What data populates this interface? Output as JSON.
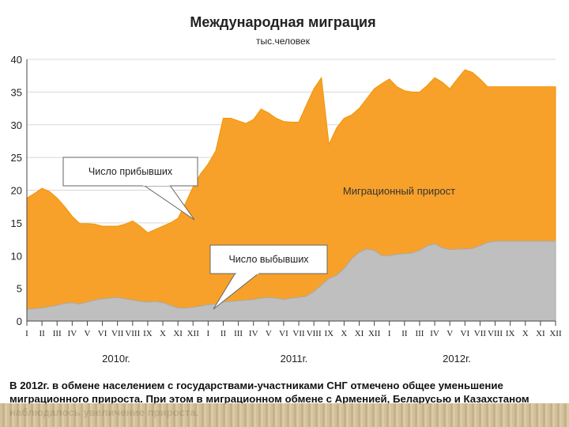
{
  "chart_data": {
    "type": "area",
    "title": "Международная миграция",
    "subtitle": "тыс.человек",
    "ylim": [
      0,
      40
    ],
    "yticks": [
      0,
      5,
      10,
      15,
      20,
      25,
      30,
      35,
      40
    ],
    "months": [
      "I",
      "II",
      "III",
      "IV",
      "V",
      "VI",
      "VII",
      "VIII",
      "IX",
      "X",
      "XI",
      "XII",
      "I",
      "II",
      "III",
      "IV",
      "V",
      "VI",
      "VII",
      "VIII",
      "IX",
      "X",
      "XI",
      "XII",
      "I",
      "II",
      "III",
      "IV",
      "V",
      "VI",
      "VII",
      "VIII",
      "IX",
      "X",
      "XI",
      "XII"
    ],
    "years": [
      "2010г.",
      "2011г.",
      "2012г."
    ],
    "x": [
      0,
      0.5,
      1,
      1.5,
      2,
      2.5,
      3,
      3.5,
      4,
      4.5,
      5,
      5.5,
      6,
      6.5,
      7,
      7.5,
      8,
      8.5,
      9,
      9.5,
      10,
      10.5,
      11,
      11.5,
      12,
      12.5,
      13,
      13.5,
      14,
      14.5,
      15,
      15.5,
      16,
      16.5,
      17,
      17.5,
      18,
      18.5,
      19,
      19.5,
      20,
      20.5,
      21,
      21.5,
      22,
      22.5,
      23,
      23.5,
      24,
      24.5,
      25,
      25.5,
      26,
      26.5,
      27,
      27.5,
      28,
      28.5,
      29,
      29.5,
      30,
      30.5,
      31,
      31.5,
      32,
      32.5,
      33,
      33.5,
      34,
      34.5,
      35
    ],
    "series": [
      {
        "name": "Число прибывших",
        "color": "#f7a12a",
        "values": [
          18.8,
          19.5,
          20.3,
          19.8,
          18.8,
          17.5,
          16.0,
          14.9,
          14.9,
          14.8,
          14.5,
          14.5,
          14.5,
          14.8,
          15.3,
          14.5,
          13.5,
          14.0,
          14.5,
          15.0,
          15.7,
          18.0,
          20.5,
          22.5,
          24.0,
          26.0,
          31.0,
          31.0,
          30.6,
          30.2,
          30.8,
          32.4,
          31.8,
          31.0,
          30.5,
          30.4,
          30.4,
          33.0,
          35.5,
          37.2,
          27.0,
          29.5,
          31.0,
          31.5,
          32.5,
          34.0,
          35.5,
          36.3,
          37.0,
          35.8,
          35.2,
          35.0,
          35.0,
          36.0,
          37.2,
          36.5,
          35.5,
          37.0,
          38.4,
          38.0,
          37.0,
          35.8,
          35.8,
          35.8,
          35.8,
          35.8,
          35.8,
          35.8,
          35.8,
          35.8,
          35.8
        ]
      },
      {
        "name": "Число выбывших",
        "color": "#bfbfbf",
        "values": [
          1.8,
          1.9,
          2.0,
          2.2,
          2.4,
          2.7,
          2.8,
          2.6,
          2.9,
          3.2,
          3.4,
          3.5,
          3.6,
          3.4,
          3.2,
          3.0,
          2.9,
          3.0,
          2.8,
          2.4,
          2.0,
          2.0,
          2.1,
          2.3,
          2.5,
          2.6,
          2.9,
          3.0,
          3.1,
          3.2,
          3.3,
          3.5,
          3.6,
          3.5,
          3.3,
          3.5,
          3.6,
          3.8,
          4.5,
          5.5,
          6.5,
          7.0,
          8.0,
          9.5,
          10.5,
          11.0,
          10.8,
          10.0,
          10.0,
          10.2,
          10.3,
          10.4,
          10.8,
          11.5,
          11.8,
          11.2,
          10.9,
          11.0,
          11.0,
          11.1,
          11.5,
          12.0,
          12.2,
          12.2,
          12.2,
          12.2,
          12.2,
          12.2,
          12.2,
          12.2,
          12.2
        ]
      }
    ],
    "annotations": {
      "arrivals_label": "Число прибывших",
      "departures_label": "Число выбывших",
      "growth_label": "Миграционный прирост"
    }
  },
  "caption": "В 2012г. в обмене населением с государствами-участниками СНГ отмечено общее уменьшение миграционного прироста. При этом в миграционном обмене с Арменией, Беларусью и Казахстаном наблюдалось увеличение прироста."
}
